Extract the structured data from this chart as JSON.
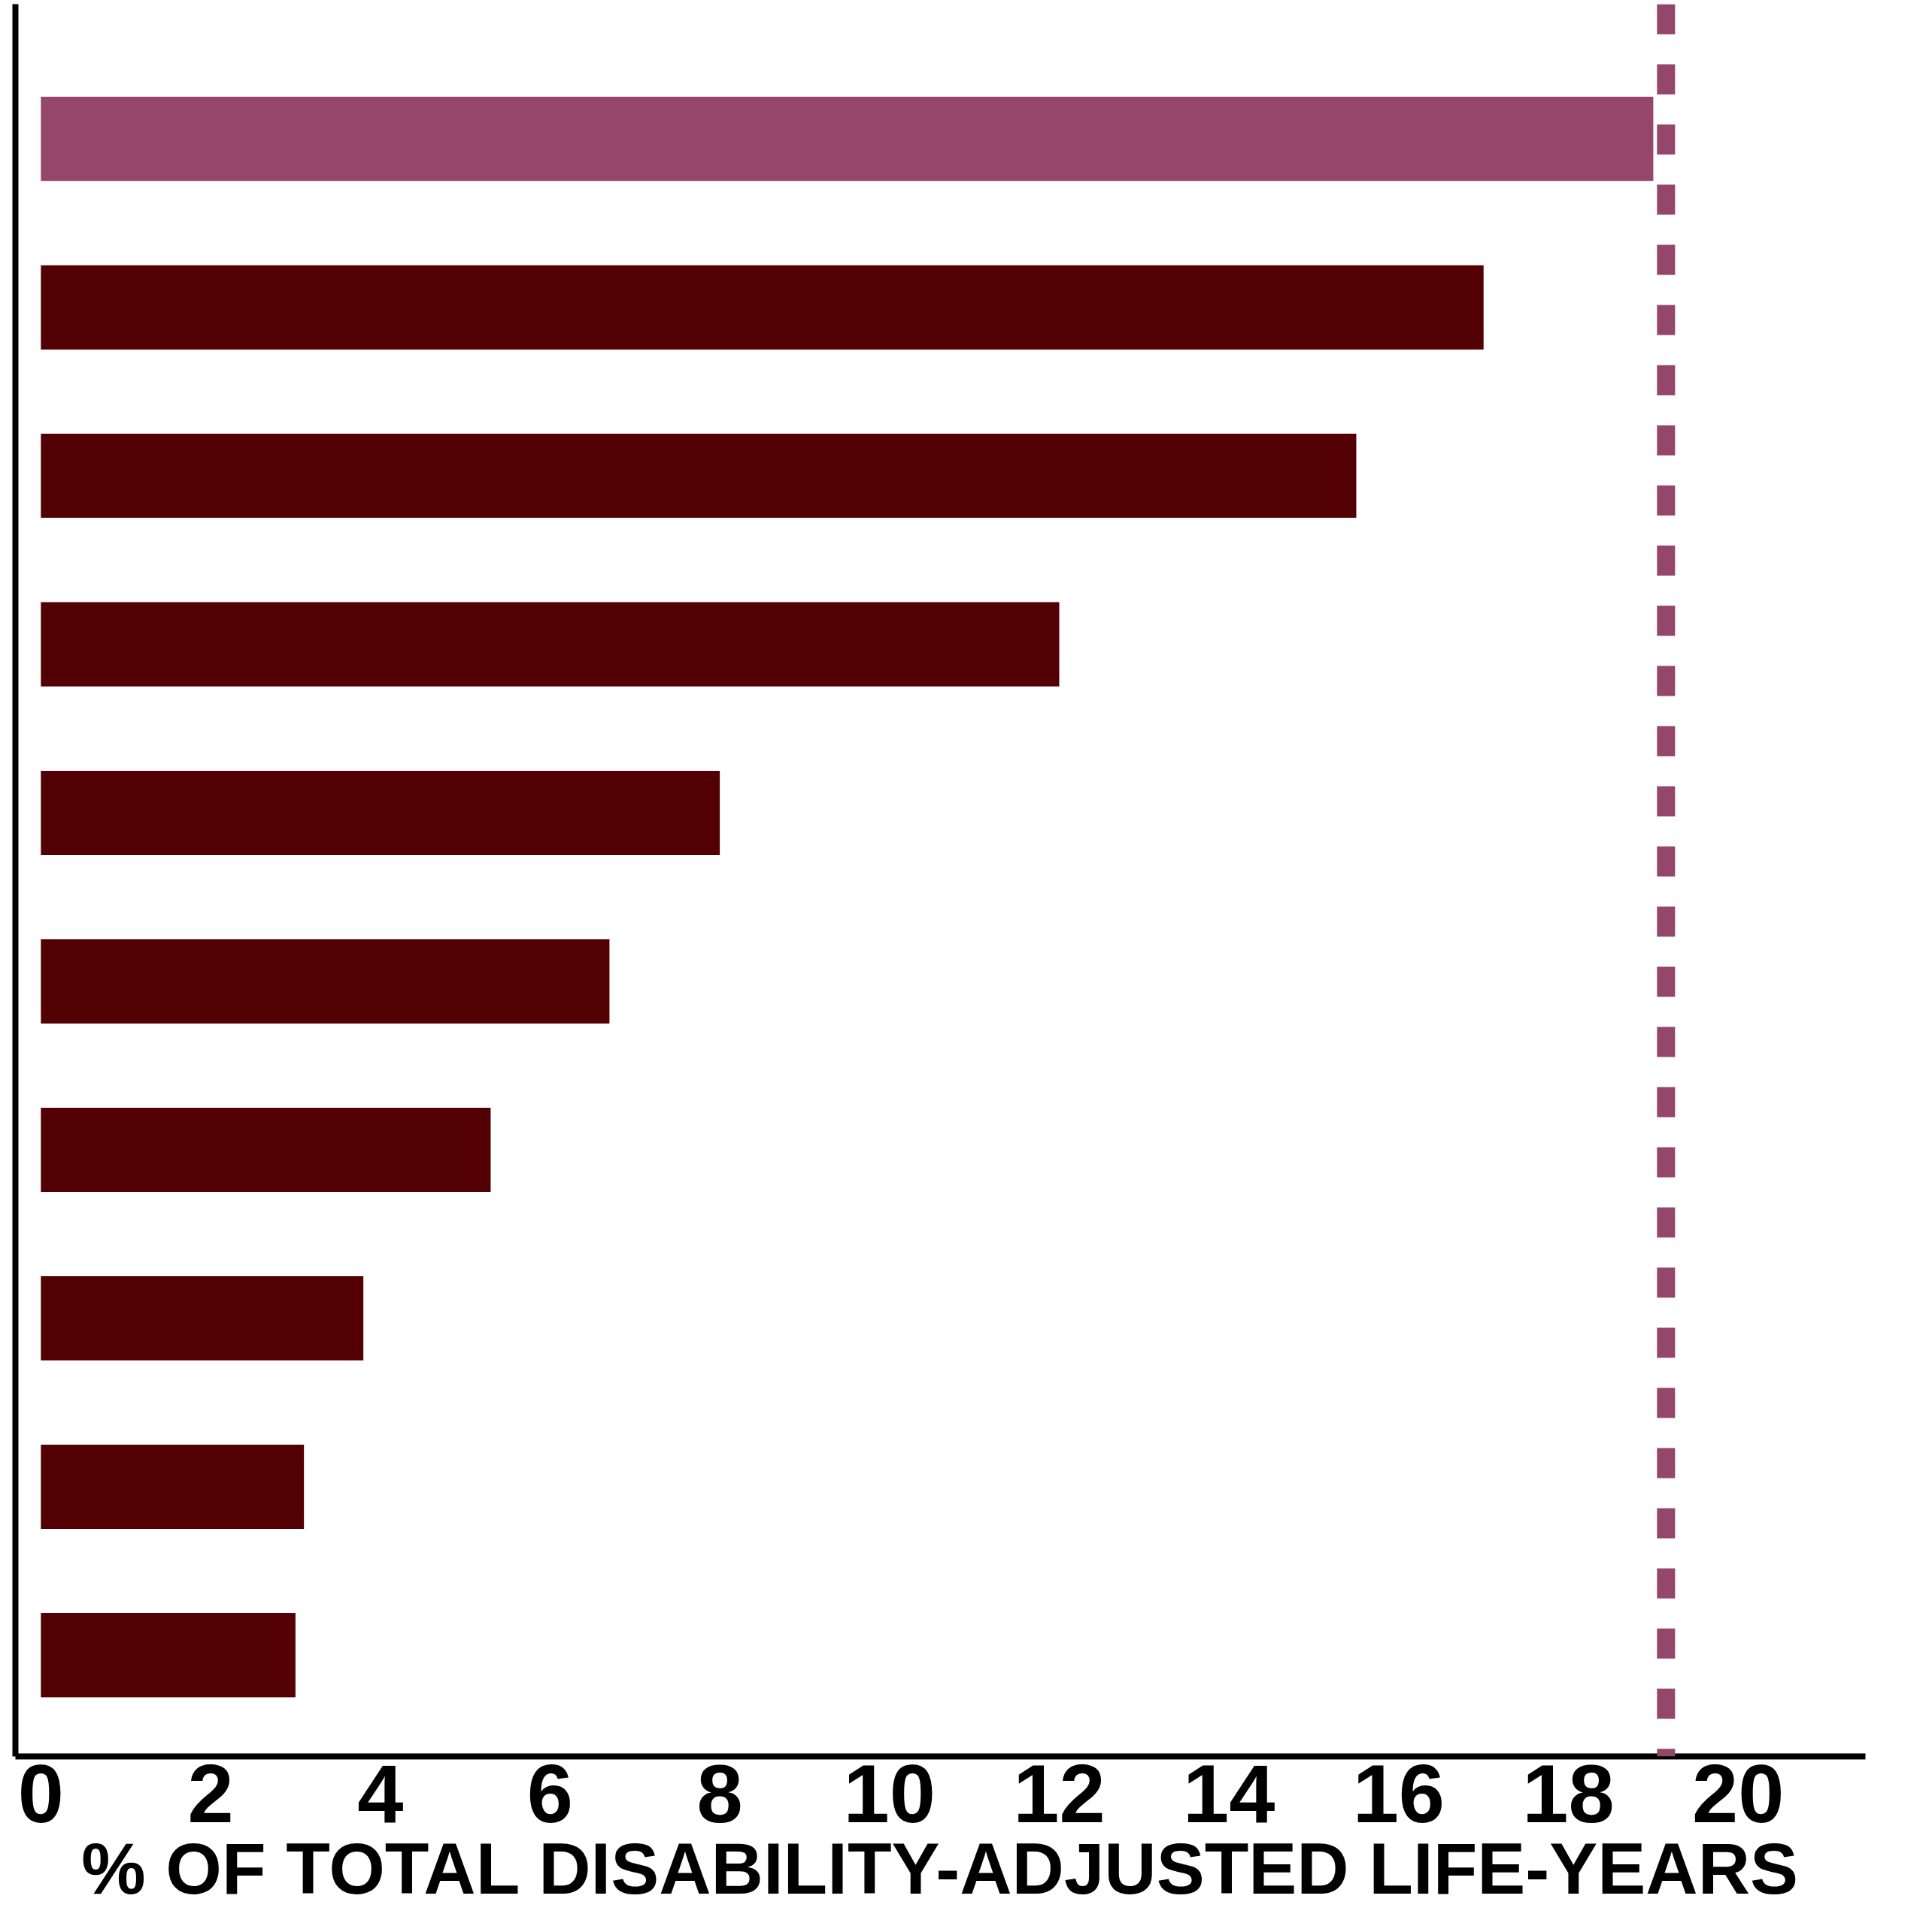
{
  "chart_data": {
    "type": "bar",
    "orientation": "horizontal",
    "categories": [
      null,
      null,
      null,
      null,
      null,
      null,
      null,
      null,
      null,
      null
    ],
    "values": [
      19.0,
      17.0,
      15.5,
      12.0,
      8.0,
      6.7,
      5.3,
      3.8,
      3.1,
      3.0
    ],
    "colors": [
      "#94466b",
      "#520004",
      "#520004",
      "#520004",
      "#520004",
      "#520004",
      "#520004",
      "#520004",
      "#520004",
      "#520004"
    ],
    "xlabel": "% OF TOTAL DISABILITY-ADJUSTED LIFE-YEARS",
    "xlim": [
      -0.3,
      21.5
    ],
    "xticks": [
      0,
      2,
      4,
      6,
      8,
      10,
      12,
      14,
      16,
      18,
      20
    ],
    "tick_labels": "x",
    "grid": false,
    "ref_lines": [
      {
        "axis": "x",
        "value": 19.15,
        "color": "#94466b",
        "line_style": "dashed"
      }
    ]
  }
}
